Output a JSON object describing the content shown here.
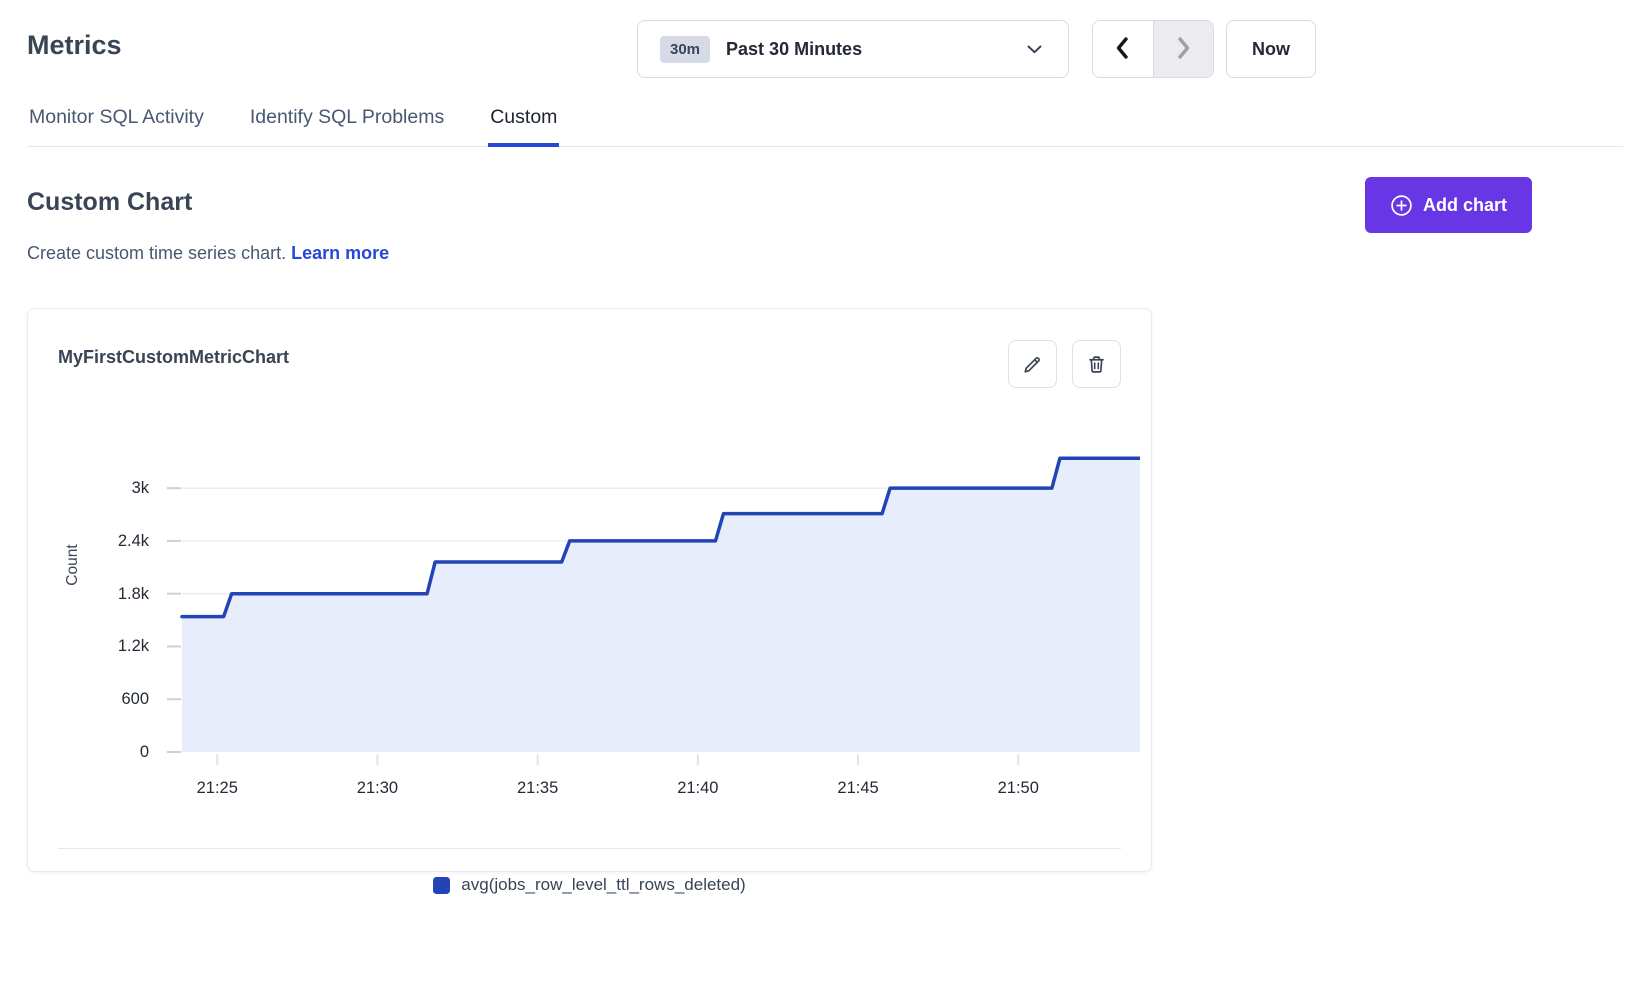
{
  "page": {
    "title": "Metrics"
  },
  "time_controls": {
    "range_badge": "30m",
    "range_label": "Past 30 Minutes",
    "now_label": "Now"
  },
  "tabs": [
    {
      "label": "Monitor SQL Activity",
      "active": false
    },
    {
      "label": "Identify SQL Problems",
      "active": false
    },
    {
      "label": "Custom",
      "active": true
    }
  ],
  "section": {
    "heading": "Custom Chart",
    "description": "Create custom time series chart.",
    "learn_more_label": "Learn more",
    "add_chart_label": "Add chart"
  },
  "card": {
    "title": "MyFirstCustomMetricChart"
  },
  "colors": {
    "accent_purple": "#6936e6",
    "link_blue": "#2749d8",
    "tab_underline": "#2749d8",
    "series_line": "#2244b5",
    "series_fill": "#e8edfb"
  },
  "chart_data": {
    "type": "area",
    "title": "MyFirstCustomMetricChart",
    "ylabel": "Count",
    "xlabel": "",
    "grid": true,
    "legend_position": "bottom-center",
    "x_unit": "minutes after 21:00",
    "xlim": [
      23.9,
      53.8
    ],
    "ylim": [
      0,
      3650
    ],
    "x_ticks": [
      {
        "t": 25,
        "label": "21:25"
      },
      {
        "t": 30,
        "label": "21:30"
      },
      {
        "t": 35,
        "label": "21:35"
      },
      {
        "t": 40,
        "label": "21:40"
      },
      {
        "t": 45,
        "label": "21:45"
      },
      {
        "t": 50,
        "label": "21:50"
      }
    ],
    "y_ticks": [
      {
        "v": 0,
        "label": "0"
      },
      {
        "v": 600,
        "label": "600"
      },
      {
        "v": 1200,
        "label": "1.2k"
      },
      {
        "v": 1800,
        "label": "1.8k"
      },
      {
        "v": 2400,
        "label": "2.4k"
      },
      {
        "v": 3000,
        "label": "3k"
      }
    ],
    "series": [
      {
        "name": "avg(jobs_row_level_ttl_rows_deleted)",
        "color": "#2244b5",
        "fill": "#e8edfb",
        "step": true,
        "points": [
          [
            23.9,
            1540
          ],
          [
            25.2,
            1540
          ],
          [
            25.45,
            1800
          ],
          [
            31.55,
            1800
          ],
          [
            31.8,
            2160
          ],
          [
            35.75,
            2160
          ],
          [
            36.0,
            2400
          ],
          [
            40.55,
            2400
          ],
          [
            40.8,
            2710
          ],
          [
            45.75,
            2710
          ],
          [
            46.0,
            3000
          ],
          [
            51.05,
            3000
          ],
          [
            51.3,
            3340
          ],
          [
            53.8,
            3340
          ]
        ]
      }
    ]
  }
}
